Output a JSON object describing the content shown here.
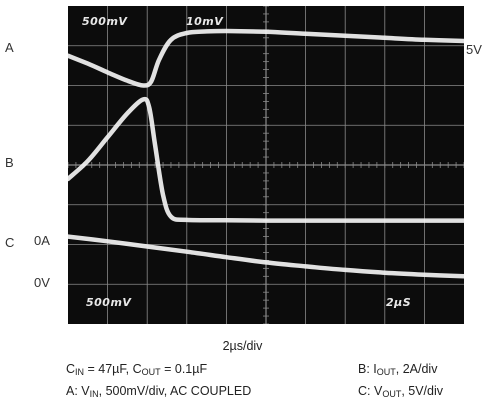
{
  "chart_data": {
    "type": "line",
    "title": "",
    "xlabel": "2µs/div",
    "ylabel": "",
    "grid": true,
    "divisions": {
      "x": 10,
      "y": 8
    },
    "x_range_div": [
      0,
      10
    ],
    "y_range_div": [
      0,
      8
    ],
    "screen_annotations": [
      "500mV",
      "10mV",
      "500mV",
      "2µS"
    ],
    "trace_labels": {
      "A": "A",
      "B": "B",
      "C": "C"
    },
    "level_labels": {
      "A_right": "5V",
      "B_zero": "0A",
      "C_zero": "0V"
    },
    "series": [
      {
        "name": "A",
        "x_div": [
          0,
          0.5,
          1.0,
          1.5,
          1.9,
          2.1,
          2.3,
          2.6,
          3.0,
          3.5,
          4.0,
          5.0,
          6.0,
          7.0,
          8.0,
          9.0,
          10.0
        ],
        "y_div": [
          6.75,
          6.55,
          6.33,
          6.12,
          6.0,
          6.1,
          6.65,
          7.15,
          7.32,
          7.36,
          7.37,
          7.35,
          7.3,
          7.25,
          7.2,
          7.15,
          7.12
        ]
      },
      {
        "name": "B",
        "x_div": [
          0,
          0.5,
          1.0,
          1.5,
          1.9,
          2.05,
          2.2,
          2.4,
          2.6,
          3.0,
          4.0,
          5.0,
          6.0,
          7.0,
          8.0,
          9.0,
          10.0
        ],
        "y_div": [
          3.65,
          4.1,
          4.7,
          5.3,
          5.65,
          5.45,
          4.5,
          3.25,
          2.7,
          2.62,
          2.61,
          2.6,
          2.6,
          2.6,
          2.6,
          2.6,
          2.6
        ]
      },
      {
        "name": "C",
        "x_div": [
          0,
          1.0,
          2.0,
          3.0,
          4.0,
          5.0,
          6.0,
          7.0,
          8.0,
          9.0,
          10.0
        ],
        "y_div": [
          2.2,
          2.08,
          1.95,
          1.82,
          1.68,
          1.55,
          1.45,
          1.36,
          1.29,
          1.24,
          1.2
        ]
      }
    ]
  },
  "captions": {
    "time_div": "2µs/div",
    "cin": {
      "c": "C",
      "in_sub": "IN",
      "in_val": " = 47µF,  ",
      "c2": "C",
      "out_sub": "OUT",
      "out_val": " = 0.1µF"
    },
    "trace_a": {
      "prefix": "A: V",
      "sub": "IN",
      "rest": ", 500mV/div, AC COUPLED"
    },
    "trace_b": {
      "prefix": "B: I",
      "sub": "OUT",
      "rest": ", 2A/div"
    },
    "trace_c": {
      "prefix": "C: V",
      "sub": "OUT",
      "rest": ", 5V/div"
    }
  },
  "colors": {
    "screen": "#0c0c0c",
    "grid": "#8a8a8a",
    "trace": "#f2f2f2"
  }
}
